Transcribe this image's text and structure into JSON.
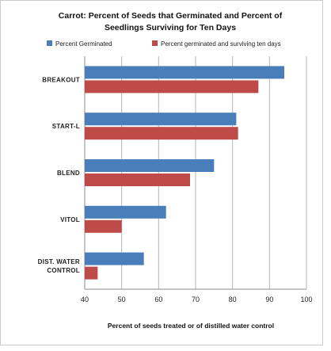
{
  "chart_data": {
    "type": "bar",
    "orientation": "horizontal",
    "title_lines": [
      "Carrot:  Percent of Seeds that Germinated and Percent of",
      "Seedlings Surviving for Ten Days"
    ],
    "xlabel": "Percent of seeds treated or of distilled water control",
    "xlim": [
      40,
      100
    ],
    "xticks": [
      40,
      50,
      60,
      70,
      80,
      90,
      100
    ],
    "grid": true,
    "legend_position": "top",
    "categories": [
      {
        "lines": [
          "BREAKOUT"
        ]
      },
      {
        "lines": [
          "START-L"
        ]
      },
      {
        "lines": [
          "BLEND"
        ]
      },
      {
        "lines": [
          "VITOL"
        ]
      },
      {
        "lines": [
          "DIST. WATER",
          "CONTROL"
        ]
      }
    ],
    "series": [
      {
        "name": "Percent Germinated",
        "color": "#4a7ebb",
        "values": [
          94,
          81,
          75,
          62,
          56
        ]
      },
      {
        "name": "Percent germinated and surviving ten days",
        "color": "#be4b48",
        "values": [
          87,
          81.5,
          68.5,
          50,
          43.5
        ]
      }
    ]
  }
}
